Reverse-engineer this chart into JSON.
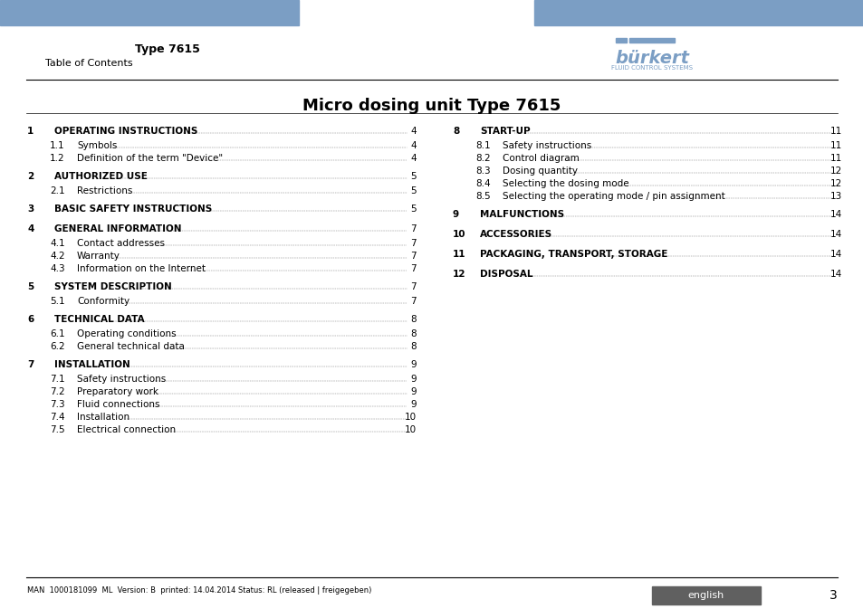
{
  "title": "Micro dosing unit Type 7615",
  "header_type": "Type 7615",
  "header_subtitle": "Table of Contents",
  "header_bar_color": "#7B9EC4",
  "bg_color": "#ffffff",
  "footer_text": "MAN  1000181099  ML  Version: B  printed: 14.04.2014 Status: RL (released | freigegeben)",
  "footer_lang": "english",
  "footer_page": "3",
  "footer_lang_bg": "#606060",
  "left_entries": [
    {
      "num": "1",
      "title": "OPERATING INSTRUCTIONS",
      "page": "4",
      "bold": true,
      "subs": [
        {
          "num": "1.1",
          "title": "Symbols",
          "page": "4"
        },
        {
          "num": "1.2",
          "title": "Definition of the term \"Device\"",
          "page": "4"
        }
      ]
    },
    {
      "num": "2",
      "title": "AUTHORIZED USE",
      "page": "5",
      "bold": true,
      "subs": [
        {
          "num": "2.1",
          "title": "Restrictions",
          "page": "5"
        }
      ]
    },
    {
      "num": "3",
      "title": "BASIC SAFETY INSTRUCTIONS",
      "page": "5",
      "bold": true,
      "subs": []
    },
    {
      "num": "4",
      "title": "GENERAL INFORMATION",
      "page": "7",
      "bold": true,
      "subs": [
        {
          "num": "4.1",
          "title": "Contact addresses",
          "page": "7"
        },
        {
          "num": "4.2",
          "title": "Warranty",
          "page": "7"
        },
        {
          "num": "4.3",
          "title": "Information on the Internet",
          "page": "7"
        }
      ]
    },
    {
      "num": "5",
      "title": "SYSTEM DESCRIPTION",
      "page": "7",
      "bold": true,
      "subs": [
        {
          "num": "5.1",
          "title": "Conformity",
          "page": "7"
        }
      ]
    },
    {
      "num": "6",
      "title": "TECHNICAL DATA",
      "page": "8",
      "bold": true,
      "subs": [
        {
          "num": "6.1",
          "title": "Operating conditions",
          "page": "8"
        },
        {
          "num": "6.2",
          "title": "General technical data",
          "page": "8"
        }
      ]
    },
    {
      "num": "7",
      "title": "INSTALLATION",
      "page": "9",
      "bold": true,
      "subs": [
        {
          "num": "7.1",
          "title": "Safety instructions",
          "page": "9"
        },
        {
          "num": "7.2",
          "title": "Preparatory work",
          "page": "9"
        },
        {
          "num": "7.3",
          "title": "Fluid connections",
          "page": "9"
        },
        {
          "num": "7.4",
          "title": "Installation",
          "page": "10"
        },
        {
          "num": "7.5",
          "title": "Electrical connection",
          "page": "10"
        }
      ]
    }
  ],
  "right_entries": [
    {
      "num": "8",
      "title": "START-UP",
      "page": "11",
      "bold": true,
      "subs": [
        {
          "num": "8.1",
          "title": "Safety instructions",
          "page": "11"
        },
        {
          "num": "8.2",
          "title": "Control diagram",
          "page": "11"
        },
        {
          "num": "8.3",
          "title": "Dosing quantity",
          "page": "12"
        },
        {
          "num": "8.4",
          "title": "Selecting the dosing mode",
          "page": "12"
        },
        {
          "num": "8.5",
          "title": "Selecting the operating mode / pin assignment",
          "page": "13"
        }
      ]
    },
    {
      "num": "9",
      "title": "MALFUNCTIONS",
      "page": "14",
      "bold": true,
      "subs": []
    },
    {
      "num": "10",
      "title": "ACCESSORIES",
      "page": "14",
      "bold": true,
      "subs": []
    },
    {
      "num": "11",
      "title": "PACKAGING, TRANSPORT, STORAGE",
      "page": "14",
      "bold": true,
      "subs": []
    },
    {
      "num": "12",
      "title": "DISPOSAL",
      "page": "14",
      "bold": true,
      "subs": []
    }
  ]
}
